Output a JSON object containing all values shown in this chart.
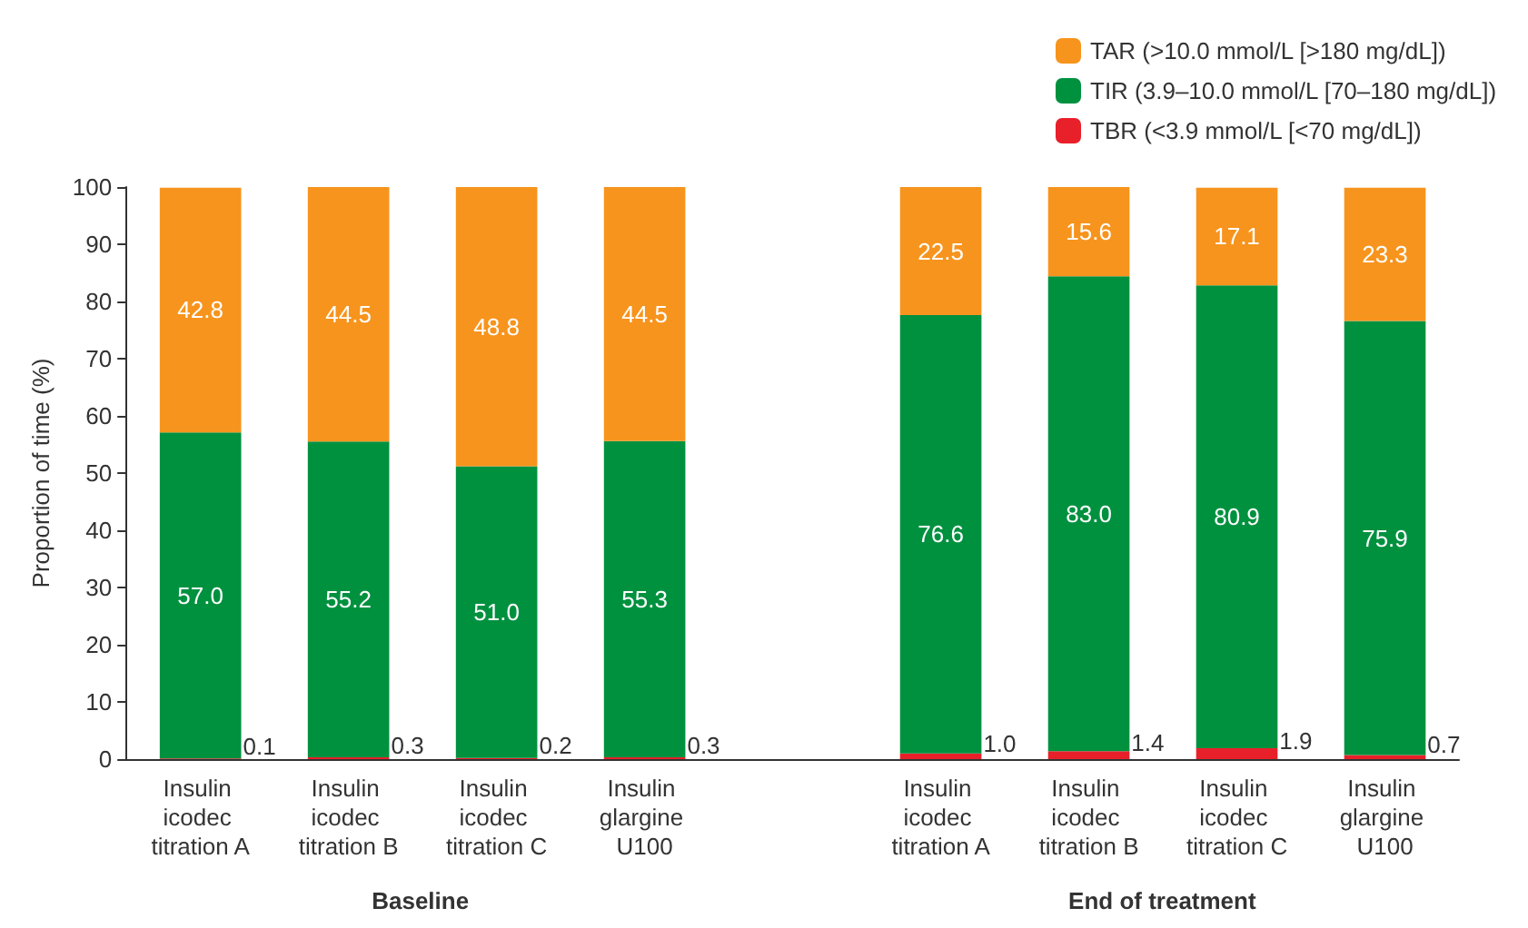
{
  "chart_data": {
    "type": "bar",
    "stacked": true,
    "ylabel": "Proportion of time (%)",
    "categories": [
      "Insulin icodec titration A",
      "Insulin icodec titration B",
      "Insulin icodec titration C",
      "Insulin glargine U100",
      null,
      "Insulin icodec titration A",
      "Insulin icodec titration B",
      "Insulin icodec titration C",
      "Insulin glargine U100"
    ],
    "series": [
      {
        "name": "TBR (<3.9 mmol/L [<70 mg/dL])",
        "color": "#e8202a",
        "values": [
          0.1,
          0.3,
          0.2,
          0.3,
          null,
          1.0,
          1.4,
          1.9,
          0.7
        ],
        "value_labels": [
          "0.1",
          "0.3",
          "0.2",
          "0.3",
          null,
          "1.0",
          "1.4",
          "1.9",
          "0.7"
        ]
      },
      {
        "name": "TIR (3.9–10.0 mmol/L [70–180 mg/dL])",
        "color": "#00913f",
        "values": [
          57.0,
          55.2,
          51.0,
          55.3,
          null,
          76.6,
          83.0,
          80.9,
          75.9
        ],
        "value_labels": [
          "57.0",
          "55.2",
          "51.0",
          "55.3",
          null,
          "76.6",
          "83.0",
          "80.9",
          "75.9"
        ]
      },
      {
        "name": "TAR (>10.0 mmol/L [>180 mg/dL])",
        "color": "#f7941d",
        "values": [
          42.8,
          44.5,
          48.8,
          44.5,
          null,
          22.5,
          15.6,
          17.1,
          23.3
        ],
        "value_labels": [
          "42.8",
          "44.5",
          "48.8",
          "44.5",
          null,
          "22.5",
          "15.6",
          "17.1",
          "23.3"
        ]
      }
    ],
    "ylim": [
      0,
      100
    ],
    "yticks": [
      0,
      10,
      20,
      30,
      40,
      50,
      60,
      70,
      80,
      90,
      100
    ],
    "grid": false,
    "legend": "top right",
    "annotations": [
      "Baseline",
      "End of treatment"
    ]
  }
}
